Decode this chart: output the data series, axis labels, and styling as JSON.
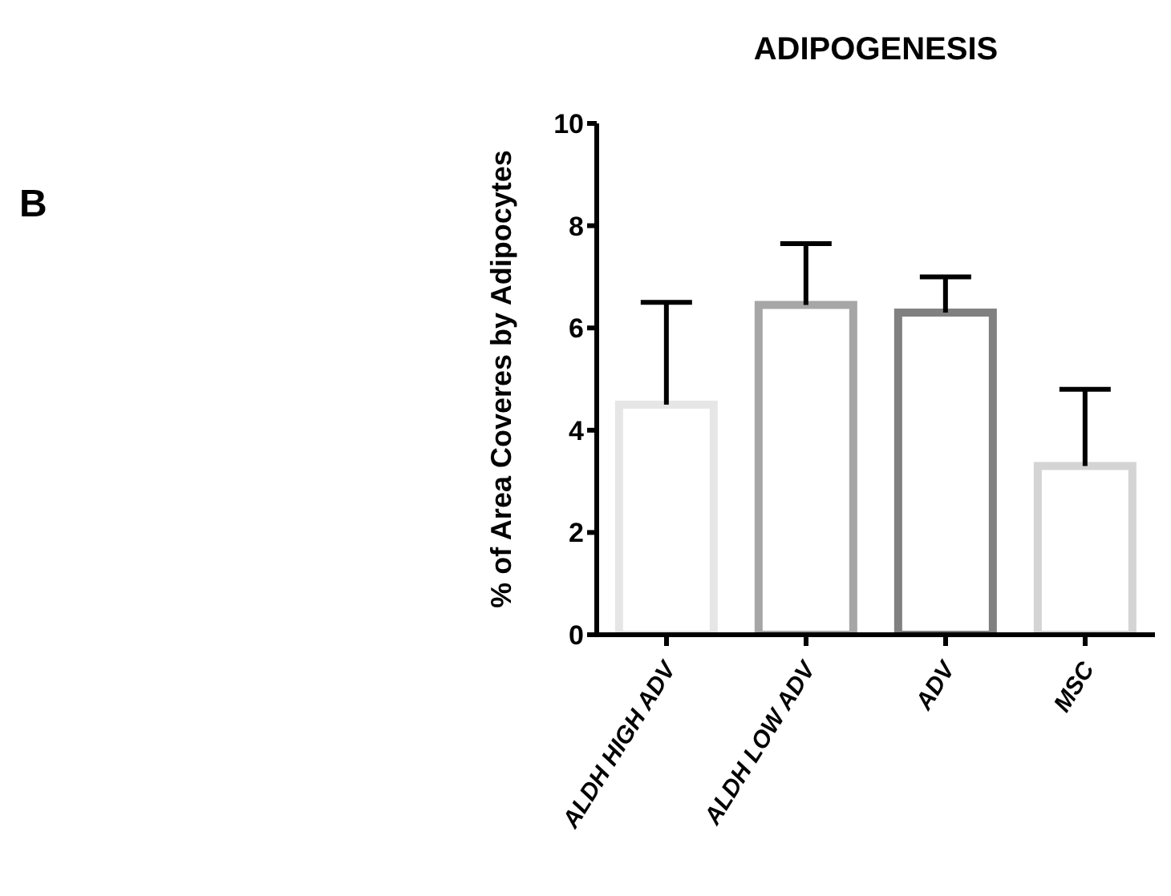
{
  "chart_data": {
    "type": "bar",
    "title": "ADIPOGENESIS",
    "ylabel": "% of Area Coveres by Adipocytes",
    "annotations": [
      "B"
    ],
    "categories": [
      "ALDH HIGH ADV",
      "ALDH LOW ADV",
      "ADV",
      "MSC"
    ],
    "values": [
      4.5,
      6.45,
      6.3,
      3.3
    ],
    "errors": [
      [
        4.5,
        6.5
      ],
      [
        6.45,
        7.65
      ],
      [
        6.3,
        7.0
      ],
      [
        3.3,
        4.8
      ]
    ],
    "colors": [
      "#e6e6e6",
      "#a6a6a6",
      "#808080",
      "#d4d4d4"
    ],
    "ylim": [
      0,
      10
    ],
    "yticks": [
      0,
      2,
      4,
      6,
      8,
      10
    ],
    "grid": false,
    "legend": false
  }
}
